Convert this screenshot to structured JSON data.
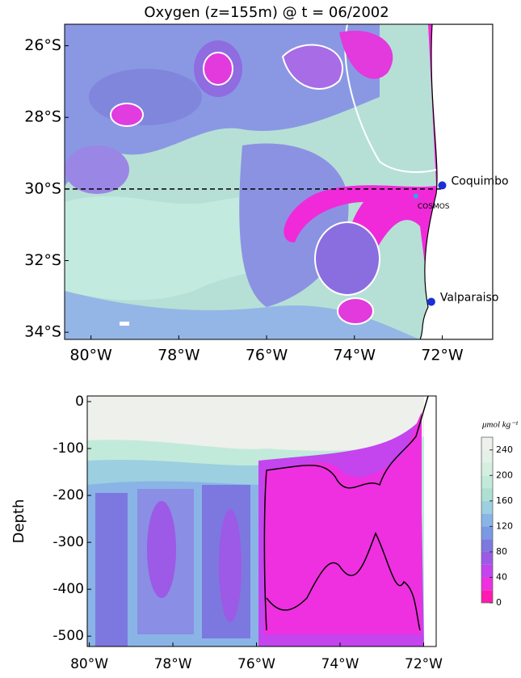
{
  "chart_data": [
    {
      "type": "map",
      "title": "Oxygen (z=155m) @ t = 06/2002",
      "xlim": [
        -80.6,
        -70.85
      ],
      "ylim": [
        -34.2,
        -25.4
      ],
      "xticks": [
        {
          "value": -80,
          "label": "80°W"
        },
        {
          "value": -78,
          "label": "78°W"
        },
        {
          "value": -76,
          "label": "76°W"
        },
        {
          "value": -74,
          "label": "74°W"
        },
        {
          "value": -72,
          "label": "72°W"
        }
      ],
      "yticks": [
        {
          "value": -26,
          "label": "26°S"
        },
        {
          "value": -28,
          "label": "28°S"
        },
        {
          "value": -30,
          "label": "30°S"
        },
        {
          "value": -32,
          "label": "32°S"
        },
        {
          "value": -34,
          "label": "34°S"
        }
      ],
      "section_lat": -30,
      "points": [
        {
          "name": "Coquimbo",
          "x": -72.0,
          "y": -29.9,
          "color": "#1a2fd6"
        },
        {
          "name": "COSMOS",
          "x": -72.6,
          "y": -30.2,
          "color": "#2aa8ee"
        },
        {
          "name": "Valparaiso",
          "x": -72.25,
          "y": -33.15,
          "color": "#1a2fd6"
        }
      ]
    },
    {
      "type": "section",
      "ylabel": "Depth",
      "xlim": [
        -80.05,
        -71.7
      ],
      "ylim": [
        -522,
        12
      ],
      "xticks": [
        {
          "value": -80,
          "label": "80°W"
        },
        {
          "value": -78,
          "label": "78°W"
        },
        {
          "value": -76,
          "label": "76°W"
        },
        {
          "value": -74,
          "label": "74°W"
        },
        {
          "value": -72,
          "label": "72°W"
        }
      ],
      "yticks": [
        0,
        -100,
        -200,
        -300,
        -400,
        -500
      ],
      "colorbar": {
        "label": "μmol kg⁻¹",
        "levels": [
          0,
          20,
          40,
          60,
          80,
          100,
          120,
          140,
          160,
          180,
          200,
          220,
          240,
          260
        ],
        "colors": [
          "#ff1ab0",
          "#ee30e0",
          "#c444ee",
          "#9c5ae6",
          "#7c78e0",
          "#7a98e4",
          "#8ab4e6",
          "#9ccfe0",
          "#ade0d2",
          "#c2eada",
          "#d4efe0",
          "#e4f1e8",
          "#eef0ec"
        ],
        "ticks": [
          0,
          40,
          80,
          120,
          160,
          200,
          240
        ]
      }
    }
  ]
}
